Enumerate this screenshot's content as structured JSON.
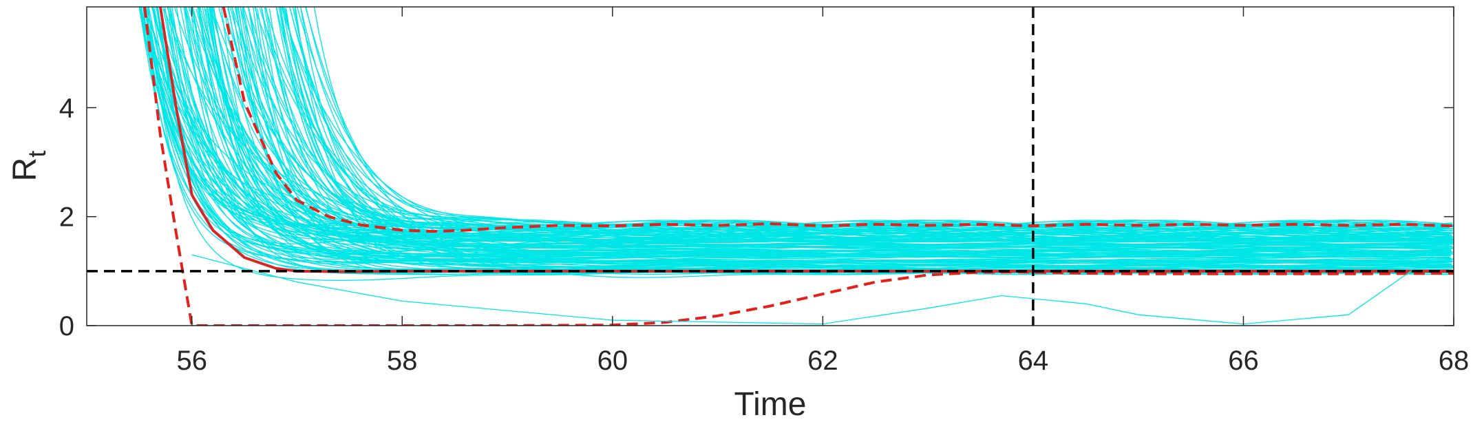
{
  "chart_data": {
    "type": "line",
    "xlabel": "Time",
    "ylabel": {
      "main": "R",
      "sub": "t"
    },
    "xlim": [
      55,
      68
    ],
    "ylim": [
      0,
      5.85
    ],
    "xticks": [
      "56",
      "58",
      "60",
      "62",
      "64",
      "66",
      "68"
    ],
    "yticks": [
      "0",
      "2",
      "4"
    ],
    "xtick_values": [
      56,
      58,
      60,
      62,
      64,
      66,
      68
    ],
    "ytick_values": [
      0,
      2,
      4
    ],
    "grid": false,
    "legend": "none",
    "colors": {
      "ensemble": "#00e6e6",
      "median": "#d62728",
      "bounds": "#e3211c",
      "reference": "#000000",
      "axes": "#262626"
    },
    "reference_lines": {
      "horizontal_y": 1,
      "vertical_x": 64
    },
    "ensemble_trajectories": {
      "count": 140,
      "start_time_range": [
        55.5,
        57.2
      ],
      "initial_value": 5.85,
      "final_value_range": [
        0.95,
        1.9
      ],
      "decay_rate_range": [
        1.2,
        3.6
      ]
    },
    "series": [
      {
        "role": "median",
        "style": "solid",
        "x": [
          55.7,
          55.85,
          56.0,
          56.2,
          56.5,
          56.8,
          57.0,
          57.5,
          58,
          60,
          62,
          64,
          66,
          68
        ],
        "y": [
          5.85,
          4.0,
          2.4,
          1.75,
          1.25,
          1.05,
          1.0,
          0.99,
          1.0,
          1.0,
          1.0,
          1.0,
          1.0,
          1.0
        ]
      },
      {
        "role": "upper-bound",
        "style": "dashed",
        "x": [
          56.3,
          56.5,
          56.8,
          57.0,
          57.3,
          57.6,
          58.0,
          58.3,
          58.6,
          59.0,
          59.5,
          60,
          60.5,
          61,
          61.5,
          62,
          62.5,
          63,
          63.5,
          64,
          64.5,
          65,
          65.5,
          66,
          66.5,
          67,
          67.5,
          68
        ],
        "y": [
          5.85,
          4.1,
          2.8,
          2.3,
          2.0,
          1.85,
          1.75,
          1.73,
          1.75,
          1.8,
          1.84,
          1.83,
          1.86,
          1.84,
          1.87,
          1.83,
          1.86,
          1.84,
          1.86,
          1.83,
          1.86,
          1.84,
          1.86,
          1.84,
          1.86,
          1.84,
          1.86,
          1.83
        ]
      },
      {
        "role": "lower-bound",
        "style": "dashed",
        "x": [
          55.55,
          55.7,
          55.85,
          56.0,
          57,
          58,
          59,
          60,
          60.5,
          61,
          61.5,
          62,
          62.5,
          63,
          63.5,
          64,
          64.5,
          65,
          66,
          67,
          68
        ],
        "y": [
          5.85,
          3.5,
          1.7,
          0.0,
          0.0,
          0.0,
          0.0,
          0.01,
          0.06,
          0.18,
          0.36,
          0.58,
          0.8,
          0.93,
          0.98,
          0.98,
          0.96,
          0.95,
          0.95,
          0.95,
          0.96
        ]
      },
      {
        "role": "outlier-low",
        "style": "solid",
        "x": [
          56,
          57,
          58,
          60,
          62,
          63,
          63.7,
          64.5,
          65,
          66,
          67,
          68
        ],
        "y": [
          1.3,
          0.8,
          0.45,
          0.1,
          0.03,
          0.32,
          0.55,
          0.4,
          0.2,
          0.03,
          0.2,
          1.55
        ]
      }
    ]
  }
}
